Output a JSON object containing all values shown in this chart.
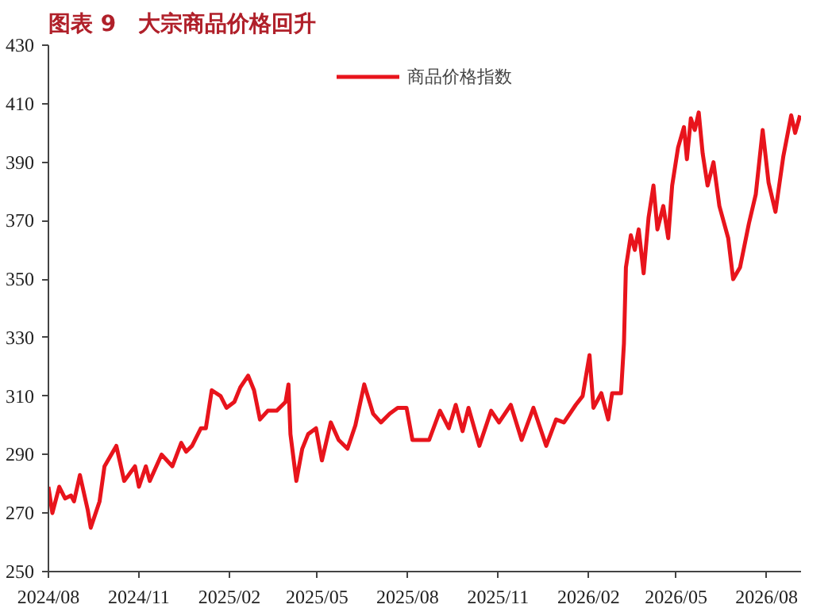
{
  "chart_data": {
    "type": "line",
    "title": "图表 9　大宗商品价格回升",
    "legend": "top",
    "grid": false,
    "xlim": [
      "2024-08-01",
      "2026-09-05"
    ],
    "ylim": [
      250,
      430
    ],
    "yticks": [
      250,
      270,
      290,
      310,
      330,
      350,
      370,
      390,
      410,
      430
    ],
    "xticks": [
      {
        "value": "2024-08-01",
        "label": "2024/08"
      },
      {
        "value": "2024-11-01",
        "label": "2024/11"
      },
      {
        "value": "2025-02-01",
        "label": "2025/02"
      },
      {
        "value": "2025-05-01",
        "label": "2025/05"
      },
      {
        "value": "2025-08-01",
        "label": "2025/08"
      },
      {
        "value": "2025-11-01",
        "label": "2025/11"
      },
      {
        "value": "2026-02-01",
        "label": "2026/02"
      },
      {
        "value": "2026-05-01",
        "label": "2026/05"
      },
      {
        "value": "2026-08-01",
        "label": "2026/08"
      }
    ],
    "series": [
      {
        "name": "商品价格指数",
        "color": "#e8141c",
        "x": [
          "2024-08-01",
          "2024-08-05",
          "2024-08-12",
          "2024-08-18",
          "2024-08-24",
          "2024-08-27",
          "2024-09-02",
          "2024-09-10",
          "2024-09-13",
          "2024-09-22",
          "2024-09-27",
          "2024-10-09",
          "2024-10-17",
          "2024-10-28",
          "2024-11-01",
          "2024-11-08",
          "2024-11-12",
          "2024-11-24",
          "2024-12-05",
          "2024-12-14",
          "2024-12-19",
          "2024-12-25",
          "2025-01-03",
          "2025-01-08",
          "2025-01-14",
          "2025-01-23",
          "2025-01-29",
          "2025-02-06",
          "2025-02-12",
          "2025-02-20",
          "2025-02-26",
          "2025-03-04",
          "2025-03-12",
          "2025-03-21",
          "2025-03-30",
          "2025-04-02",
          "2025-04-04",
          "2025-04-10",
          "2025-04-16",
          "2025-04-22",
          "2025-04-30",
          "2025-05-06",
          "2025-05-15",
          "2025-05-23",
          "2025-06-01",
          "2025-06-09",
          "2025-06-18",
          "2025-06-27",
          "2025-07-05",
          "2025-07-14",
          "2025-07-22",
          "2025-07-31",
          "2025-08-06",
          "2025-08-23",
          "2025-09-03",
          "2025-09-12",
          "2025-09-19",
          "2025-09-26",
          "2025-10-02",
          "2025-10-13",
          "2025-10-25",
          "2025-11-02",
          "2025-11-14",
          "2025-11-25",
          "2025-12-07",
          "2025-12-20",
          "2025-12-30",
          "2026-01-07",
          "2026-01-19",
          "2026-01-26",
          "2026-02-02",
          "2026-02-06",
          "2026-02-14",
          "2026-02-21",
          "2026-02-25",
          "2026-03-06",
          "2026-03-09",
          "2026-03-11",
          "2026-03-16",
          "2026-03-20",
          "2026-03-24",
          "2026-03-29",
          "2026-04-03",
          "2026-04-08",
          "2026-04-12",
          "2026-04-18",
          "2026-04-23",
          "2026-04-27",
          "2026-05-03",
          "2026-05-09",
          "2026-05-12",
          "2026-05-16",
          "2026-05-20",
          "2026-05-24",
          "2026-05-28",
          "2026-06-02",
          "2026-06-08",
          "2026-06-14",
          "2026-06-23",
          "2026-06-28",
          "2026-07-05",
          "2026-07-14",
          "2026-07-21",
          "2026-07-28",
          "2026-08-03",
          "2026-08-10",
          "2026-08-18",
          "2026-08-26",
          "2026-08-30",
          "2026-09-04"
        ],
        "values": [
          279,
          270,
          279,
          275,
          276,
          274,
          283,
          271,
          265,
          274,
          286,
          293,
          281,
          286,
          279,
          286,
          281,
          290,
          286,
          294,
          291,
          293,
          299,
          299,
          312,
          310,
          306,
          308,
          313,
          317,
          312,
          302,
          305,
          305,
          308,
          314,
          297,
          281,
          292,
          297,
          299,
          288,
          301,
          295,
          292,
          300,
          314,
          304,
          301,
          304,
          306,
          306,
          295,
          295,
          305,
          299,
          307,
          298,
          306,
          293,
          305,
          301,
          307,
          295,
          306,
          293,
          302,
          301,
          307,
          310,
          324,
          306,
          311,
          302,
          311,
          311,
          328,
          354,
          365,
          360,
          367,
          352,
          371,
          382,
          367,
          375,
          364,
          382,
          395,
          402,
          391,
          405,
          401,
          407,
          393,
          382,
          390,
          375,
          364,
          350,
          354,
          369,
          379,
          401,
          383,
          373,
          392,
          406,
          400,
          406
        ]
      }
    ]
  }
}
